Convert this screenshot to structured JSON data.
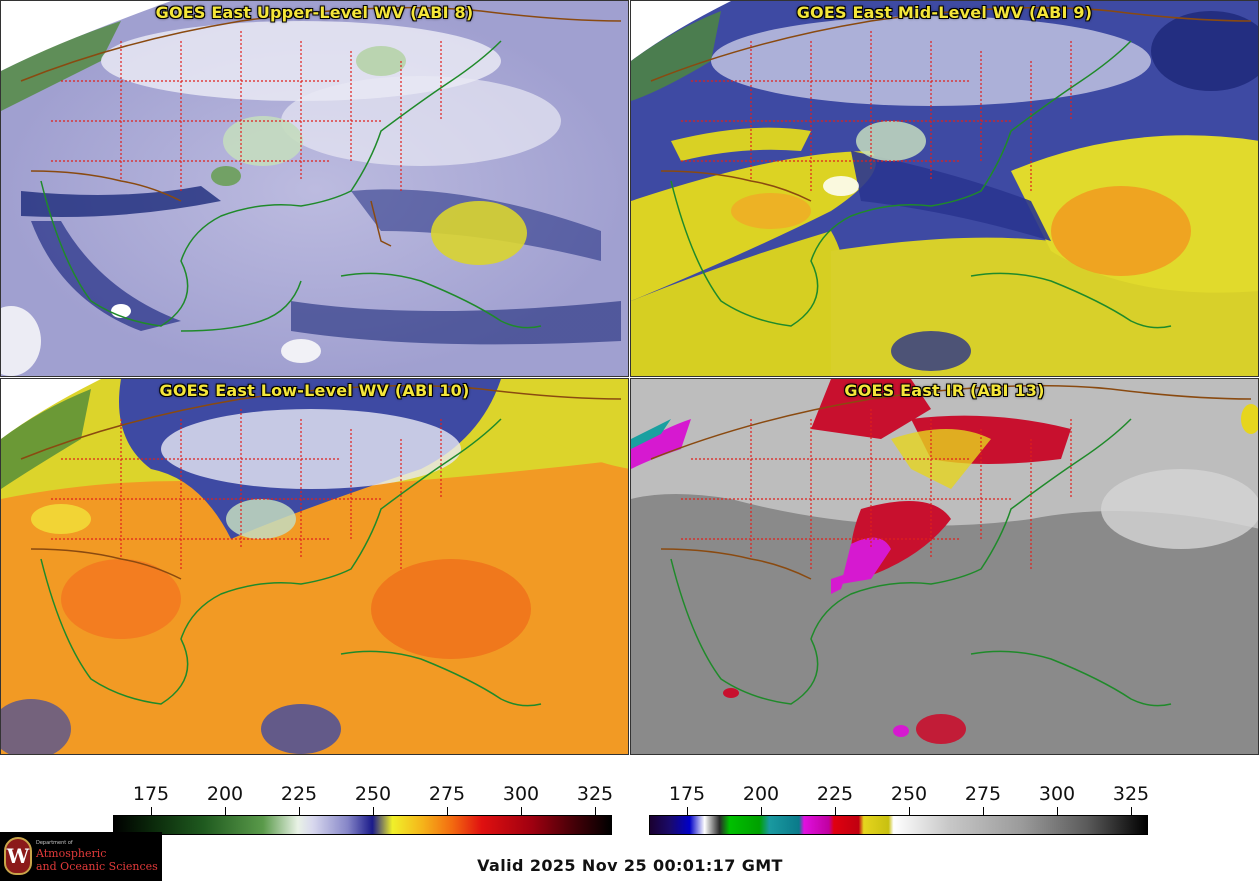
{
  "panels": [
    {
      "title": "GOES East Upper-Level WV (ABI 8)",
      "scheme": "wv_upper"
    },
    {
      "title": "GOES East Mid-Level WV (ABI 9)",
      "scheme": "wv_mid"
    },
    {
      "title": "GOES East Low-Level WV (ABI 10)",
      "scheme": "wv_low"
    },
    {
      "title": "GOES East IR (ABI 13)",
      "scheme": "ir"
    }
  ],
  "colorbars": {
    "wv": {
      "ticks": [
        "175",
        "200",
        "225",
        "250",
        "275",
        "300",
        "325"
      ]
    },
    "ir": {
      "ticks": [
        "175",
        "200",
        "225",
        "250",
        "275",
        "300",
        "325"
      ]
    }
  },
  "valid_time": "Valid 2025 Nov 25 00:01:17 GMT",
  "logo": {
    "dept_line": "Department of",
    "line1": "Atmospheric",
    "line2": "and Oceanic Sciences",
    "seal_letter": "W"
  },
  "colors": {
    "state_borders": "#e0201c",
    "coastlines": "#1f8a2a",
    "country_borders": "#8a4a10"
  }
}
